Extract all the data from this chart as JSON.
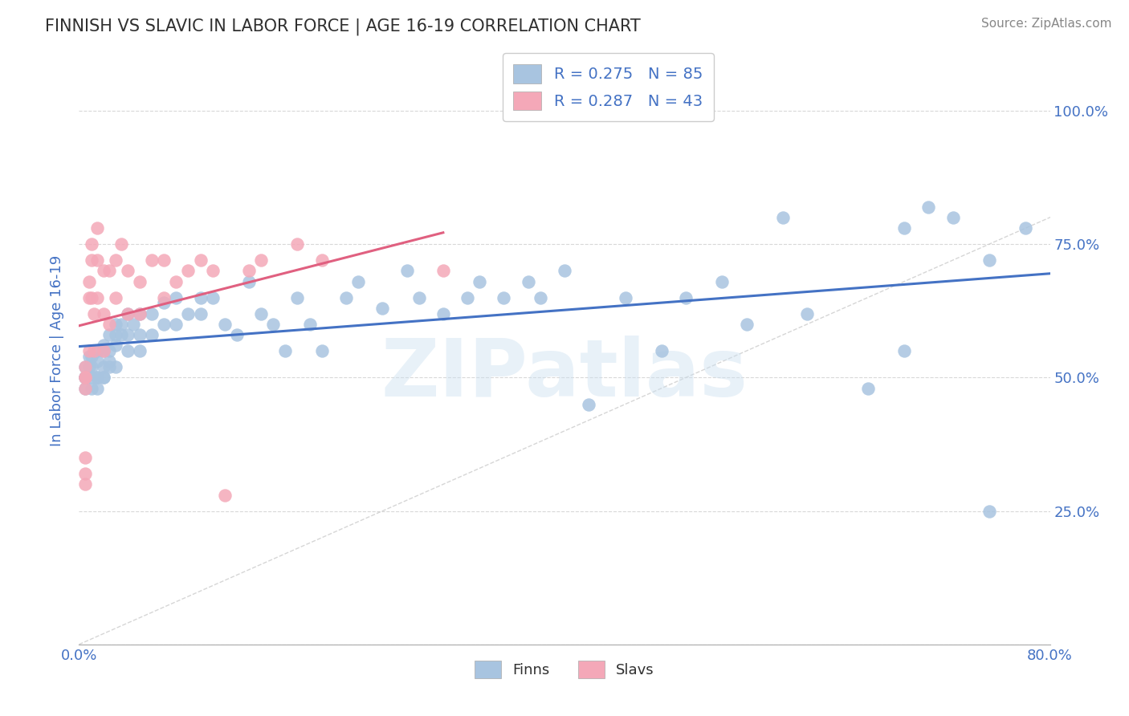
{
  "title": "FINNISH VS SLAVIC IN LABOR FORCE | AGE 16-19 CORRELATION CHART",
  "source_text": "Source: ZipAtlas.com",
  "ylabel": "In Labor Force | Age 16-19",
  "xlim": [
    0.0,
    0.8
  ],
  "ylim": [
    0.0,
    1.1
  ],
  "x_ticks": [
    0.0,
    0.1,
    0.2,
    0.3,
    0.4,
    0.5,
    0.6,
    0.7,
    0.8
  ],
  "y_ticks": [
    0.0,
    0.25,
    0.5,
    0.75,
    1.0
  ],
  "right_y_tick_labels": [
    "",
    "25.0%",
    "50.0%",
    "75.0%",
    "100.0%"
  ],
  "finns_R": 0.275,
  "finns_N": 85,
  "slavs_R": 0.287,
  "slavs_N": 43,
  "finns_color": "#a8c4e0",
  "slavs_color": "#f4a8b8",
  "finns_trend_color": "#4472c4",
  "slavs_trend_color": "#e06080",
  "watermark_text": "ZIPatlas",
  "background_color": "#ffffff",
  "title_color": "#404040",
  "tick_label_color": "#4472c4",
  "finns_x": [
    0.005,
    0.005,
    0.005,
    0.005,
    0.005,
    0.008,
    0.008,
    0.01,
    0.01,
    0.01,
    0.01,
    0.015,
    0.015,
    0.015,
    0.015,
    0.015,
    0.02,
    0.02,
    0.02,
    0.02,
    0.02,
    0.025,
    0.025,
    0.025,
    0.025,
    0.03,
    0.03,
    0.03,
    0.03,
    0.035,
    0.035,
    0.04,
    0.04,
    0.04,
    0.045,
    0.05,
    0.05,
    0.05,
    0.06,
    0.06,
    0.07,
    0.07,
    0.08,
    0.08,
    0.09,
    0.1,
    0.1,
    0.11,
    0.12,
    0.13,
    0.14,
    0.15,
    0.16,
    0.17,
    0.18,
    0.19,
    0.2,
    0.22,
    0.23,
    0.25,
    0.27,
    0.28,
    0.3,
    0.32,
    0.33,
    0.35,
    0.37,
    0.38,
    0.4,
    0.42,
    0.45,
    0.48,
    0.5,
    0.53,
    0.55,
    0.58,
    0.6,
    0.65,
    0.68,
    0.7,
    0.72,
    0.75,
    0.78,
    0.75,
    0.68
  ],
  "finns_y": [
    0.5,
    0.52,
    0.5,
    0.48,
    0.5,
    0.54,
    0.52,
    0.54,
    0.52,
    0.5,
    0.48,
    0.55,
    0.53,
    0.5,
    0.5,
    0.48,
    0.56,
    0.55,
    0.52,
    0.5,
    0.5,
    0.58,
    0.55,
    0.53,
    0.52,
    0.6,
    0.58,
    0.56,
    0.52,
    0.6,
    0.58,
    0.62,
    0.58,
    0.55,
    0.6,
    0.62,
    0.58,
    0.55,
    0.62,
    0.58,
    0.64,
    0.6,
    0.65,
    0.6,
    0.62,
    0.65,
    0.62,
    0.65,
    0.6,
    0.58,
    0.68,
    0.62,
    0.6,
    0.55,
    0.65,
    0.6,
    0.55,
    0.65,
    0.68,
    0.63,
    0.7,
    0.65,
    0.62,
    0.65,
    0.68,
    0.65,
    0.68,
    0.65,
    0.7,
    0.45,
    0.65,
    0.55,
    0.65,
    0.68,
    0.6,
    0.8,
    0.62,
    0.48,
    0.55,
    0.82,
    0.8,
    0.72,
    0.78,
    0.25,
    0.78
  ],
  "slavs_x": [
    0.005,
    0.005,
    0.005,
    0.005,
    0.005,
    0.005,
    0.005,
    0.008,
    0.008,
    0.008,
    0.01,
    0.01,
    0.01,
    0.012,
    0.012,
    0.015,
    0.015,
    0.015,
    0.02,
    0.02,
    0.02,
    0.025,
    0.025,
    0.03,
    0.03,
    0.035,
    0.04,
    0.04,
    0.05,
    0.05,
    0.06,
    0.07,
    0.07,
    0.08,
    0.09,
    0.1,
    0.11,
    0.12,
    0.14,
    0.15,
    0.18,
    0.2,
    0.3
  ],
  "slavs_y": [
    0.52,
    0.5,
    0.48,
    0.5,
    0.35,
    0.32,
    0.3,
    0.68,
    0.65,
    0.55,
    0.75,
    0.72,
    0.65,
    0.62,
    0.55,
    0.78,
    0.72,
    0.65,
    0.7,
    0.62,
    0.55,
    0.7,
    0.6,
    0.72,
    0.65,
    0.75,
    0.7,
    0.62,
    0.68,
    0.62,
    0.72,
    0.72,
    0.65,
    0.68,
    0.7,
    0.72,
    0.7,
    0.28,
    0.7,
    0.72,
    0.75,
    0.72,
    0.7
  ]
}
